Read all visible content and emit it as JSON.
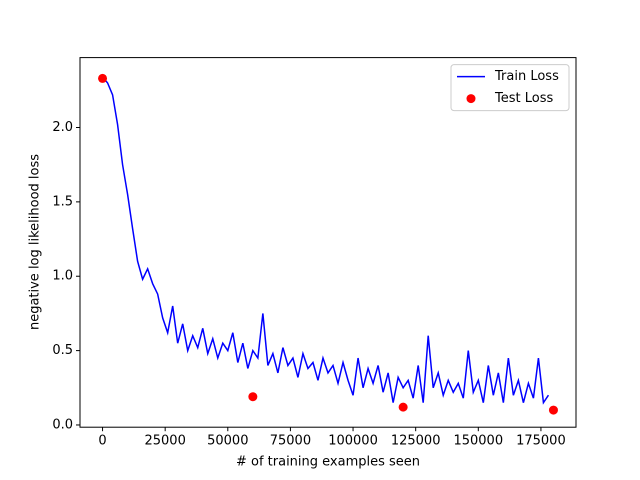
{
  "chart_data": {
    "type": "line",
    "xlabel": "# of training examples seen",
    "ylabel": "negative log likelihood loss",
    "xlim": [
      -9000,
      189000
    ],
    "ylim": [
      -0.015,
      2.47
    ],
    "xticks": [
      0,
      25000,
      50000,
      75000,
      100000,
      125000,
      150000,
      175000
    ],
    "yticks": [
      {
        "value": 0,
        "label": "0.0"
      },
      0.5,
      {
        "value": 1,
        "label": "1.0"
      },
      1.5,
      {
        "value": 2,
        "label": "2.0"
      }
    ],
    "legend": "upper right",
    "series": [
      {
        "name": "Train Loss",
        "type": "line",
        "color": "#0000ff",
        "x": [
          0,
          2000,
          4000,
          6000,
          8000,
          10000,
          12000,
          14000,
          16000,
          18000,
          20000,
          22000,
          24000,
          26000,
          28000,
          30000,
          32000,
          34000,
          36000,
          38000,
          40000,
          42000,
          44000,
          46000,
          48000,
          50000,
          52000,
          54000,
          56000,
          58000,
          60000,
          62000,
          64000,
          66000,
          68000,
          70000,
          72000,
          74000,
          76000,
          78000,
          80000,
          82000,
          84000,
          86000,
          88000,
          90000,
          92000,
          94000,
          96000,
          98000,
          100000,
          102000,
          104000,
          106000,
          108000,
          110000,
          112000,
          114000,
          116000,
          118000,
          120000,
          122000,
          124000,
          126000,
          128000,
          130000,
          132000,
          134000,
          136000,
          138000,
          140000,
          142000,
          144000,
          146000,
          148000,
          150000,
          152000,
          154000,
          156000,
          158000,
          160000,
          162000,
          164000,
          166000,
          168000,
          170000,
          172000,
          174000,
          176000,
          178000
        ],
        "values": [
          2.34,
          2.3,
          2.22,
          2.02,
          1.75,
          1.55,
          1.32,
          1.1,
          0.98,
          1.05,
          0.95,
          0.88,
          0.72,
          0.62,
          0.8,
          0.55,
          0.68,
          0.5,
          0.6,
          0.52,
          0.65,
          0.48,
          0.58,
          0.45,
          0.55,
          0.5,
          0.62,
          0.42,
          0.55,
          0.38,
          0.5,
          0.45,
          0.75,
          0.4,
          0.48,
          0.35,
          0.52,
          0.4,
          0.45,
          0.32,
          0.48,
          0.38,
          0.42,
          0.3,
          0.45,
          0.35,
          0.4,
          0.28,
          0.42,
          0.3,
          0.2,
          0.45,
          0.25,
          0.38,
          0.28,
          0.4,
          0.22,
          0.35,
          0.15,
          0.32,
          0.25,
          0.3,
          0.18,
          0.4,
          0.15,
          0.6,
          0.25,
          0.35,
          0.2,
          0.3,
          0.22,
          0.28,
          0.18,
          0.5,
          0.22,
          0.3,
          0.15,
          0.4,
          0.2,
          0.35,
          0.15,
          0.45,
          0.2,
          0.3,
          0.15,
          0.28,
          0.18,
          0.45,
          0.15,
          0.2
        ]
      },
      {
        "name": "Test Loss",
        "type": "scatter",
        "color": "#ff0000",
        "x": [
          0,
          60000,
          120000,
          180000
        ],
        "values": [
          2.33,
          0.19,
          0.12,
          0.1
        ]
      }
    ]
  }
}
